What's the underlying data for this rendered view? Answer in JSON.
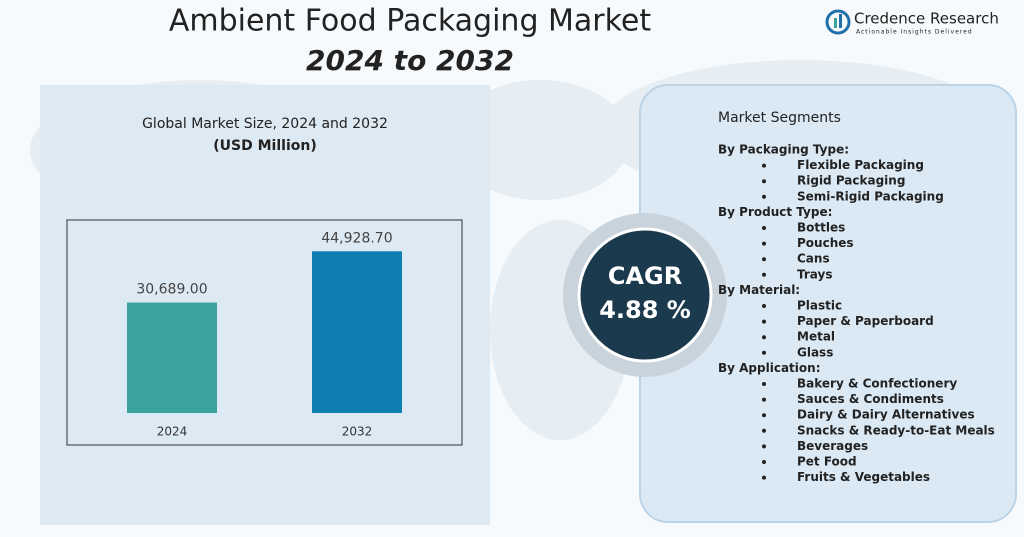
{
  "header": {
    "title": "Ambient Food Packaging Market",
    "subtitle": "2024 to 2032",
    "brand": "Credence Research",
    "tagline": "Actionable Insights Delivered"
  },
  "chart_data": {
    "type": "bar",
    "title": "Global Market Size, 2024 and 2032",
    "subtitle": "(USD Million)",
    "categories": [
      "2024",
      "2032"
    ],
    "values": [
      30689.0,
      44928.7
    ],
    "value_labels": [
      "30,689.00",
      "44,928.70"
    ],
    "colors": [
      "#3aa39e",
      "#0f7fb3"
    ],
    "ylim": [
      0,
      50000
    ]
  },
  "cagr": {
    "label": "CAGR",
    "value": "4.88 %"
  },
  "segments": {
    "title": "Market Segments",
    "groups": [
      {
        "heading": "By Packaging Type:",
        "items": [
          "Flexible Packaging",
          "Rigid Packaging",
          "Semi-Rigid Packaging"
        ]
      },
      {
        "heading": "By Product Type:",
        "items": [
          "Bottles",
          "Pouches",
          "Cans",
          "Trays"
        ]
      },
      {
        "heading": "By Material:",
        "items": [
          "Plastic",
          "Paper & Paperboard",
          "Metal",
          "Glass"
        ]
      },
      {
        "heading": "By Application:",
        "items": [
          "Bakery & Confectionery",
          "Sauces & Condiments",
          "Dairy & Dairy Alternatives",
          "Snacks & Ready-to-Eat Meals",
          "Beverages",
          "Pet Food",
          "Fruits & Vegetables"
        ]
      }
    ]
  }
}
